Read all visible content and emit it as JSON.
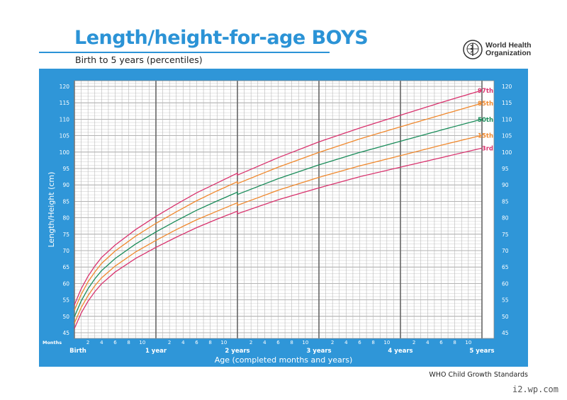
{
  "header": {
    "title": "Length/height-for-age BOYS",
    "subtitle": "Birth to 5 years (percentiles)",
    "logo_line1": "World Health",
    "logo_line2": "Organization"
  },
  "footer": "WHO Child Growth Standards",
  "watermark": "i2.wp.com",
  "colors": {
    "panel": "#2f96d8",
    "title": "#2b93d6",
    "p97": "#d9336e",
    "p85": "#f0892e",
    "p50": "#1a8c5a",
    "p15": "#f0892e",
    "p3": "#d9336e"
  },
  "chart_data": {
    "type": "line",
    "title": "Length/height-for-age BOYS",
    "xlabel": "Age (completed months and years)",
    "ylabel": "Length/Height (cm)",
    "xlim": [
      0,
      60
    ],
    "ylim": [
      43.3,
      121.7
    ],
    "grid": true,
    "yticks": [
      45,
      50,
      55,
      60,
      65,
      70,
      75,
      80,
      85,
      90,
      95,
      100,
      105,
      110,
      115,
      120
    ],
    "months_label": "Months",
    "month_ticks": [
      "2",
      "4",
      "6",
      "8",
      "10"
    ],
    "year_labels": [
      "Birth",
      "1 year",
      "2 years",
      "3 years",
      "4 years",
      "5 years"
    ],
    "x": [
      0,
      1,
      2,
      3,
      4,
      6,
      9,
      12,
      15,
      18,
      21,
      24,
      24,
      30,
      36,
      42,
      48,
      54,
      60
    ],
    "series": [
      {
        "name": "97th",
        "color": "#d9336e",
        "values": [
          53.5,
          58.4,
          62.2,
          65.3,
          67.9,
          71.7,
          76.4,
          80.4,
          84.1,
          87.6,
          90.6,
          93.6,
          93.0,
          98.3,
          103.1,
          107.3,
          111.2,
          115.1,
          118.8
        ]
      },
      {
        "name": "85th",
        "color": "#f0892e",
        "values": [
          51.9,
          56.7,
          60.5,
          63.5,
          66.1,
          69.9,
          74.4,
          78.3,
          81.8,
          85.2,
          88.2,
          91.0,
          90.4,
          95.4,
          99.9,
          104.0,
          107.7,
          111.3,
          114.9
        ]
      },
      {
        "name": "50th",
        "color": "#1a8c5a",
        "values": [
          49.9,
          54.7,
          58.4,
          61.4,
          63.9,
          67.6,
          72.0,
          75.7,
          79.1,
          82.3,
          85.1,
          87.8,
          87.1,
          91.9,
          96.1,
          99.9,
          103.3,
          106.7,
          110.0
        ]
      },
      {
        "name": "15th",
        "color": "#f0892e",
        "values": [
          47.9,
          52.7,
          56.3,
          59.3,
          61.7,
          65.3,
          69.6,
          73.1,
          76.4,
          79.4,
          82.0,
          84.6,
          83.8,
          88.4,
          92.3,
          95.8,
          98.9,
          102.1,
          105.1
        ]
      },
      {
        "name": "3rd",
        "color": "#d9336e",
        "values": [
          46.3,
          51.0,
          54.6,
          57.5,
          59.9,
          63.5,
          67.6,
          71.0,
          74.1,
          77.0,
          79.6,
          82.0,
          81.2,
          85.5,
          89.1,
          92.5,
          95.4,
          98.3,
          101.2
        ]
      }
    ]
  }
}
